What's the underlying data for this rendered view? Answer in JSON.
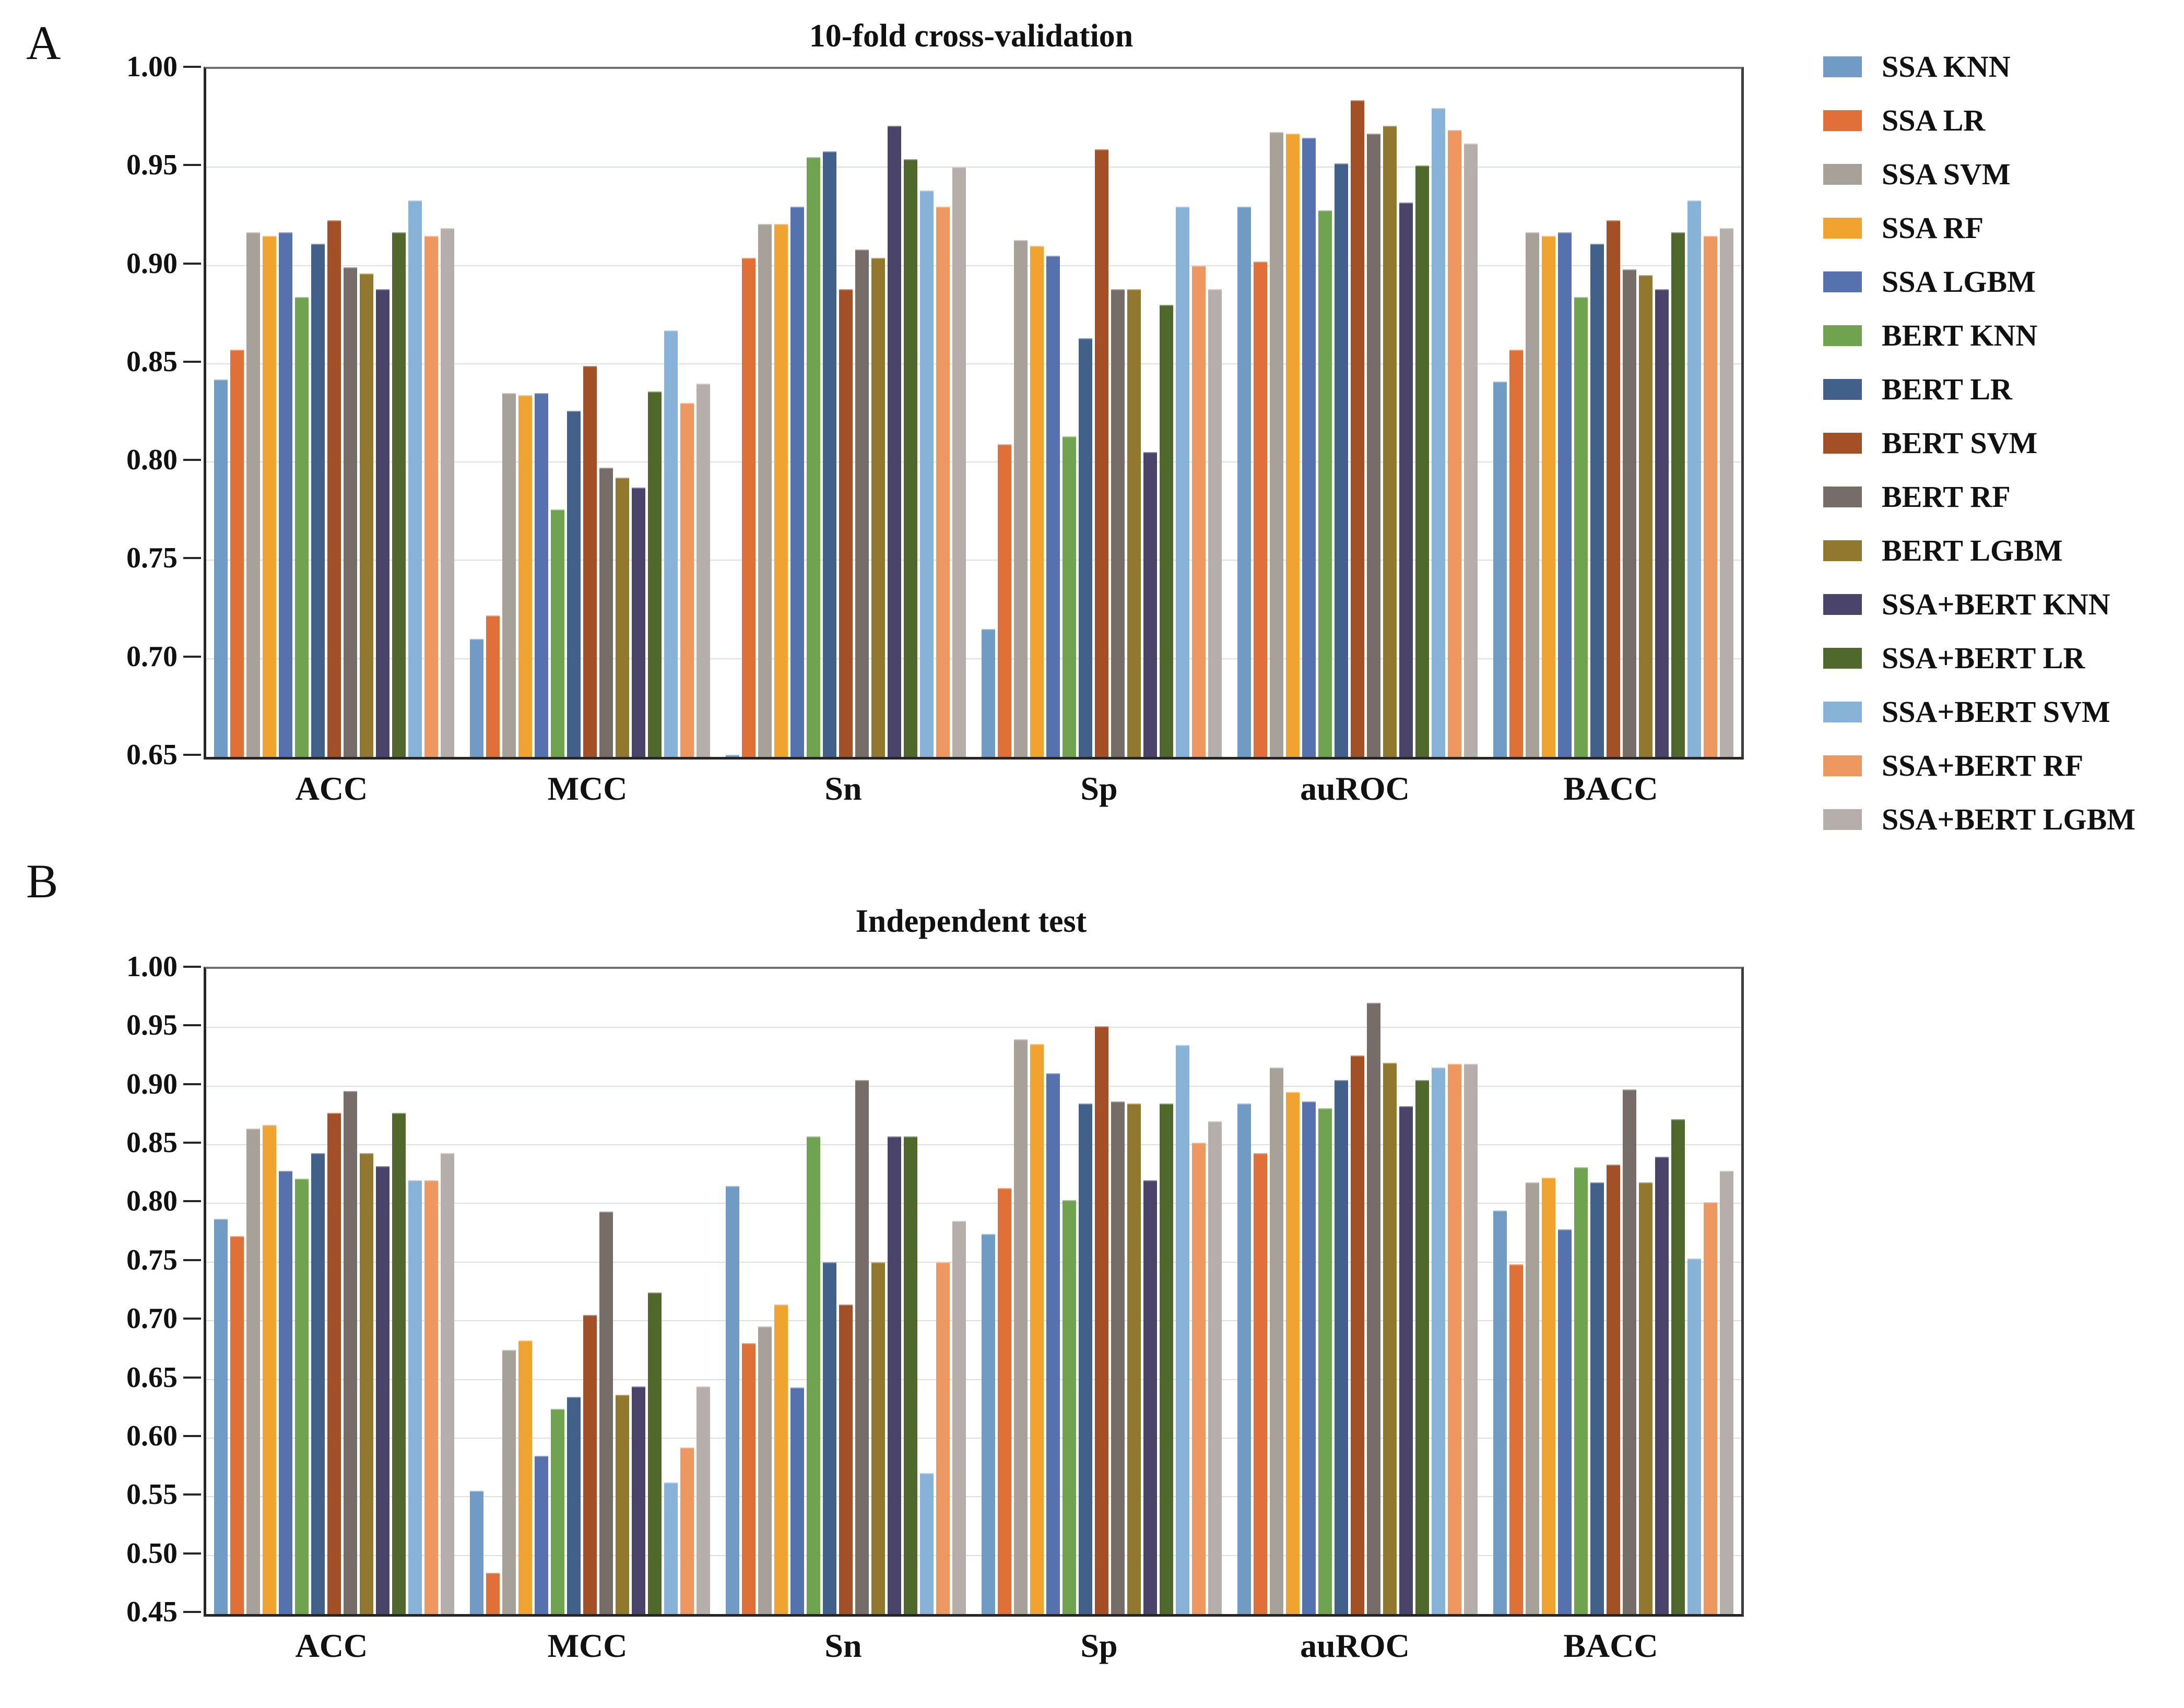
{
  "figure": {
    "panel_a_letter": "A",
    "panel_b_letter": "B"
  },
  "chart_data": [
    {
      "type": "bar",
      "panel": "A",
      "title": "10-fold cross-validation",
      "categories": [
        "ACC",
        "MCC",
        "Sn",
        "Sp",
        "auROC",
        "BACC"
      ],
      "ylim": [
        0.65,
        1.0
      ],
      "ytick_step": 0.05,
      "ytick_labels": [
        "1.00",
        "0.95",
        "0.90",
        "0.85",
        "0.80",
        "0.75",
        "0.70",
        "0.65"
      ],
      "grid": true,
      "legend_position": "right",
      "series": [
        {
          "name": "SSA KNN",
          "color": "#6f9bc4",
          "values": [
            0.842,
            0.71,
            0.651,
            0.715,
            0.93,
            0.841
          ]
        },
        {
          "name": "SSA LR",
          "color": "#e07038",
          "values": [
            0.857,
            0.722,
            0.904,
            0.809,
            0.902,
            0.857
          ]
        },
        {
          "name": "SSA SVM",
          "color": "#a8a19a",
          "values": [
            0.917,
            0.835,
            0.921,
            0.913,
            0.968,
            0.917
          ]
        },
        {
          "name": "SSA RF",
          "color": "#f0a42f",
          "values": [
            0.915,
            0.834,
            0.921,
            0.91,
            0.967,
            0.915
          ]
        },
        {
          "name": "SSA LGBM",
          "color": "#5571ae",
          "values": [
            0.917,
            0.835,
            0.93,
            0.905,
            0.965,
            0.917
          ]
        },
        {
          "name": "BERT KNN",
          "color": "#70a350",
          "values": [
            0.884,
            0.776,
            0.955,
            0.813,
            0.928,
            0.884
          ]
        },
        {
          "name": "BERT LR",
          "color": "#42618a",
          "values": [
            0.911,
            0.826,
            0.958,
            0.863,
            0.952,
            0.911
          ]
        },
        {
          "name": "BERT SVM",
          "color": "#a35026",
          "values": [
            0.923,
            0.849,
            0.888,
            0.959,
            0.984,
            0.923
          ]
        },
        {
          "name": "BERT RF",
          "color": "#776d68",
          "values": [
            0.899,
            0.797,
            0.908,
            0.888,
            0.967,
            0.898
          ]
        },
        {
          "name": "BERT LGBM",
          "color": "#92772f",
          "values": [
            0.896,
            0.792,
            0.904,
            0.888,
            0.971,
            0.895
          ]
        },
        {
          "name": "SSA+BERT KNN",
          "color": "#4a446a",
          "values": [
            0.888,
            0.787,
            0.971,
            0.805,
            0.932,
            0.888
          ]
        },
        {
          "name": "SSA+BERT LR",
          "color": "#4f682c",
          "values": [
            0.917,
            0.836,
            0.954,
            0.88,
            0.951,
            0.917
          ]
        },
        {
          "name": "SSA+BERT SVM",
          "color": "#88b3d8",
          "values": [
            0.933,
            0.867,
            0.938,
            0.93,
            0.98,
            0.933
          ]
        },
        {
          "name": "SSA+BERT RF",
          "color": "#ef9760",
          "values": [
            0.915,
            0.83,
            0.93,
            0.9,
            0.969,
            0.915
          ]
        },
        {
          "name": "SSA+BERT LGBM",
          "color": "#b5aeaa",
          "values": [
            0.919,
            0.84,
            0.95,
            0.888,
            0.962,
            0.919
          ]
        }
      ]
    },
    {
      "type": "bar",
      "panel": "B",
      "title": "Independent test",
      "categories": [
        "ACC",
        "MCC",
        "Sn",
        "Sp",
        "auROC",
        "BACC"
      ],
      "ylim": [
        0.45,
        1.0
      ],
      "ytick_step": 0.05,
      "ytick_labels": [
        "1.00",
        "0.95",
        "0.90",
        "0.85",
        "0.80",
        "0.75",
        "0.70",
        "0.65",
        "0.60",
        "0.55",
        "0.50",
        "0.45"
      ],
      "grid": true,
      "legend_position": "right",
      "series": [
        {
          "name": "SSA KNN",
          "color": "#6f9bc4",
          "values": [
            0.787,
            0.555,
            0.815,
            0.774,
            0.885,
            0.794
          ]
        },
        {
          "name": "SSA LR",
          "color": "#e07038",
          "values": [
            0.772,
            0.485,
            0.681,
            0.813,
            0.843,
            0.748
          ]
        },
        {
          "name": "SSA SVM",
          "color": "#a8a19a",
          "values": [
            0.864,
            0.675,
            0.695,
            0.94,
            0.916,
            0.818
          ]
        },
        {
          "name": "SSA RF",
          "color": "#f0a42f",
          "values": [
            0.867,
            0.683,
            0.714,
            0.936,
            0.895,
            0.822
          ]
        },
        {
          "name": "SSA LGBM",
          "color": "#5571ae",
          "values": [
            0.828,
            0.585,
            0.643,
            0.911,
            0.887,
            0.778
          ]
        },
        {
          "name": "BERT KNN",
          "color": "#70a350",
          "values": [
            0.821,
            0.625,
            0.857,
            0.803,
            0.881,
            0.831
          ]
        },
        {
          "name": "BERT LR",
          "color": "#42618a",
          "values": [
            0.843,
            0.635,
            0.75,
            0.885,
            0.905,
            0.818
          ]
        },
        {
          "name": "BERT SVM",
          "color": "#a35026",
          "values": [
            0.877,
            0.705,
            0.714,
            0.951,
            0.926,
            0.833
          ]
        },
        {
          "name": "BERT RF",
          "color": "#776d68",
          "values": [
            0.896,
            0.793,
            0.905,
            0.887,
            0.971,
            0.897
          ]
        },
        {
          "name": "BERT LGBM",
          "color": "#92772f",
          "values": [
            0.843,
            0.637,
            0.75,
            0.885,
            0.92,
            0.818
          ]
        },
        {
          "name": "SSA+BERT KNN",
          "color": "#4a446a",
          "values": [
            0.832,
            0.644,
            0.857,
            0.82,
            0.883,
            0.84
          ]
        },
        {
          "name": "SSA+BERT LR",
          "color": "#4f682c",
          "values": [
            0.877,
            0.724,
            0.857,
            0.885,
            0.905,
            0.872
          ]
        },
        {
          "name": "SSA+BERT SVM",
          "color": "#88b3d8",
          "values": [
            0.82,
            0.562,
            0.57,
            0.935,
            0.916,
            0.753
          ]
        },
        {
          "name": "SSA+BERT RF",
          "color": "#ef9760",
          "values": [
            0.82,
            0.592,
            0.75,
            0.852,
            0.919,
            0.801
          ]
        },
        {
          "name": "SSA+BERT LGBM",
          "color": "#b5aeaa",
          "values": [
            0.843,
            0.644,
            0.785,
            0.87,
            0.919,
            0.828
          ]
        }
      ]
    }
  ]
}
